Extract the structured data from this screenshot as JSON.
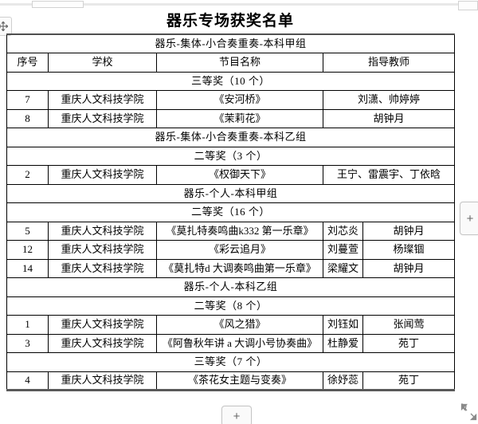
{
  "title": "器乐专场获奖名单",
  "table": {
    "columns": [
      "序号",
      "学校",
      "节目名称",
      "指导教师"
    ],
    "rows": [
      {
        "type": "group",
        "text": "器乐-集体-小合奏重奏-本科甲组"
      },
      {
        "type": "header"
      },
      {
        "type": "prize",
        "text": "三等奖（10 个）"
      },
      {
        "type": "entry",
        "no": "7",
        "school": "重庆人文科技学院",
        "program": "《安河桥》",
        "teacher": "刘潇、帅婷婷"
      },
      {
        "type": "entry",
        "no": "8",
        "school": "重庆人文科技学院",
        "program": "《茉莉花》",
        "teacher": "胡钟月"
      },
      {
        "type": "group",
        "text": "器乐-集体-小合奏重奏-本科乙组"
      },
      {
        "type": "prize",
        "text": "二等奖（3 个）"
      },
      {
        "type": "entry",
        "no": "2",
        "school": "重庆人文科技学院",
        "program": "《权御天下》",
        "teacher": "王宁、雷震宇、丁依晗"
      },
      {
        "type": "group",
        "text": "器乐-个人-本科甲组"
      },
      {
        "type": "prize",
        "text": "二等奖（16 个）"
      },
      {
        "type": "entry",
        "no": "5",
        "school": "重庆人文科技学院",
        "program": "《莫扎特奏鸣曲k332 第一乐章》",
        "performer": "刘芯炎",
        "teacher": "胡钟月"
      },
      {
        "type": "entry",
        "no": "12",
        "school": "重庆人文科技学院",
        "program": "《彩云追月》",
        "performer": "刘蔓萱",
        "teacher": "杨璨锢"
      },
      {
        "type": "entry",
        "no": "14",
        "school": "重庆人文科技学院",
        "program": "《莫扎特d 大调奏鸣曲第一乐章》",
        "performer": "梁耀文",
        "teacher": "胡钟月"
      },
      {
        "type": "group",
        "text": "器乐-个人-本科乙组"
      },
      {
        "type": "prize",
        "text": "二等奖（8 个）"
      },
      {
        "type": "entry",
        "no": "1",
        "school": "重庆人文科技学院",
        "program": "《风之猎》",
        "performer": "刘钰如",
        "teacher": "张闻莺"
      },
      {
        "type": "entry",
        "no": "3",
        "school": "重庆人文科技学院",
        "program": "《阿鲁秋年讲 a 大调小号协奏曲》",
        "performer": "杜静爱",
        "teacher": "苑丁"
      },
      {
        "type": "prize",
        "text": "三等奖（7 个）"
      },
      {
        "type": "entry",
        "no": "4",
        "school": "重庆人文科技学院",
        "program": "《茶花女主题与变奏》",
        "performer": "徐妤蕊",
        "teacher": "苑丁"
      }
    ]
  },
  "controls": {
    "add_column_label": "+",
    "add_row_label": "+"
  }
}
